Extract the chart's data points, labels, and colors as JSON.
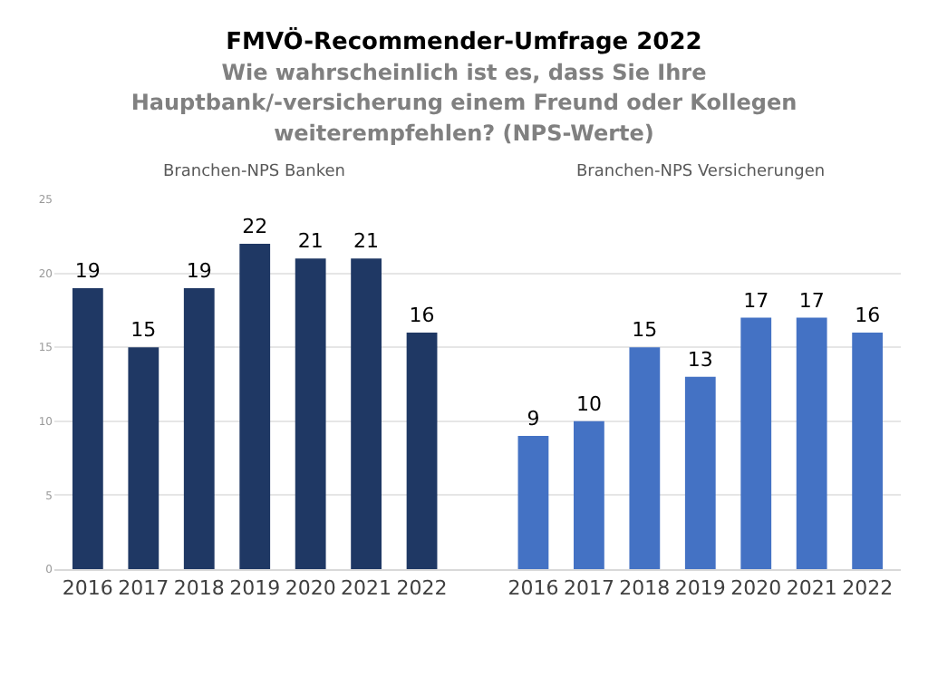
{
  "chart_data": {
    "type": "bar",
    "title": "FMVÖ-Recommender-Umfrage 2022",
    "subtitle": "Wie wahrscheinlich ist es, dass Sie Ihre Hauptbank/-versicherung einem Freund oder Kollegen weiterempfehlen? (NPS-Werte)",
    "categories": [
      "2016",
      "2017",
      "2018",
      "2019",
      "2020",
      "2021",
      "2022",
      null,
      "2016",
      "2017",
      "2018",
      "2019",
      "2020",
      "2021",
      "2022"
    ],
    "values": [
      19,
      15,
      19,
      22,
      21,
      21,
      16,
      null,
      9,
      10,
      15,
      13,
      17,
      17,
      16
    ],
    "colors": [
      "#1f3864",
      "#1f3864",
      "#1f3864",
      "#1f3864",
      "#1f3864",
      "#1f3864",
      "#1f3864",
      "#1f3864",
      "#4472c4",
      "#4472c4",
      "#4472c4",
      "#4472c4",
      "#4472c4",
      "#4472c4",
      "#4472c4"
    ],
    "annotations": [
      "Branchen-NPS Banken",
      "Branchen-NPS Versicherungen"
    ],
    "ylim": [
      0,
      25
    ],
    "yticks": [
      0,
      5,
      10,
      15,
      20,
      25
    ],
    "grid": "y",
    "data_labels": true
  }
}
